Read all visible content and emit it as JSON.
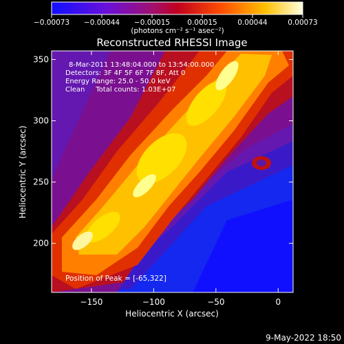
{
  "chart_data": {
    "type": "heatmap",
    "title": "Reconstructed RHESSI Image",
    "xlabel": "Heliocentric X (arcsec)",
    "ylabel": "Heliocentric Y (arcsec)",
    "xlim": [
      -182,
      12
    ],
    "ylim": [
      160,
      357
    ],
    "xticks": [
      -150,
      -100,
      -50,
      0
    ],
    "yticks": [
      200,
      250,
      300,
      350
    ],
    "colorbar": {
      "range": [
        -0.00073,
        0.00073
      ],
      "ticks": [
        "-0.00073",
        "-0.00044",
        "-0.00015",
        "0.00015",
        "0.00044",
        "0.00073"
      ],
      "unit": "(photons cm⁻² s⁻¹ asec⁻²)"
    },
    "annotations": [
      "8-Mar-2011 13:48:04.000 to 13:54:00.000",
      "Detectors: 3F 4F 5F 6F 7F 8F, Att 0",
      "Energy Range: 25.0 - 50.0 keV",
      "Clean     Total counts: 1.03E+07"
    ],
    "peak_label": "Position of Peak = [-65,322]",
    "peak": [
      -65,
      322
    ]
  },
  "footer": {
    "date": "9-May-2022 18:50"
  }
}
